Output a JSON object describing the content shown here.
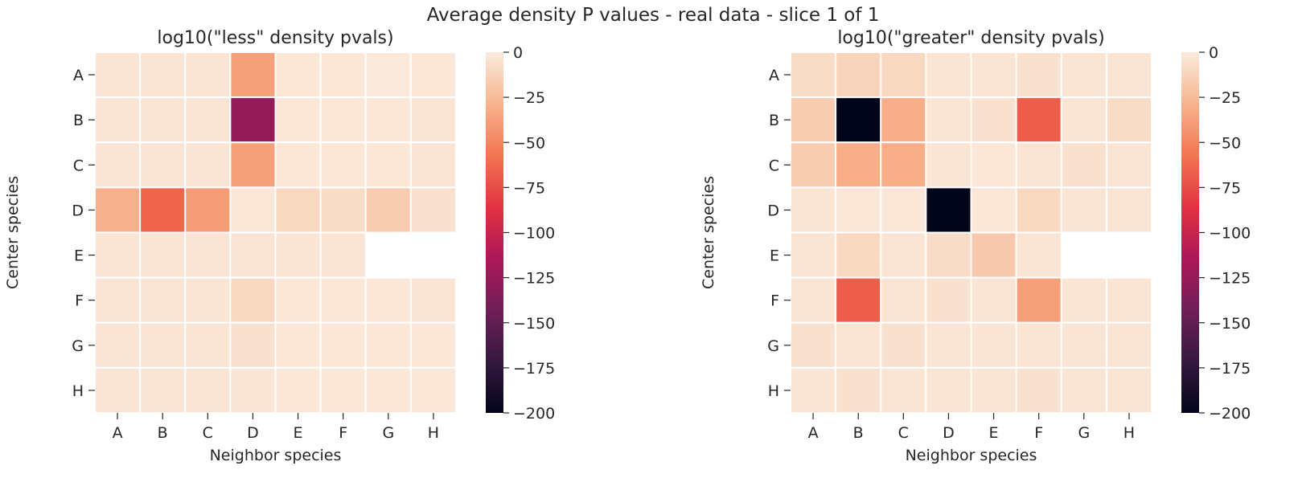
{
  "suptitle": "Average density P values - real data - slice 1 of 1",
  "colors": {
    "scale": [
      "#03051a",
      "#35193e",
      "#701f57",
      "#ad1759",
      "#e13342",
      "#f37651",
      "#f6b48f",
      "#faebdd"
    ],
    "missing": "#ffffff",
    "grid": "#ffffff"
  },
  "chart_data": [
    {
      "type": "heatmap",
      "title": "log10(\"less\" density pvals)",
      "xlabel": "Neighbor species",
      "ylabel": "Center species",
      "x_categories": [
        "A",
        "B",
        "C",
        "D",
        "E",
        "F",
        "G",
        "H"
      ],
      "y_categories": [
        "A",
        "B",
        "C",
        "D",
        "E",
        "F",
        "G",
        "H"
      ],
      "values": [
        [
          -3,
          -3,
          -3,
          -38,
          -2,
          -2,
          -1,
          -2
        ],
        [
          -3,
          -3,
          -3,
          -126,
          -2,
          -2,
          -2,
          -3
        ],
        [
          -3,
          -3,
          -3,
          -38,
          -2,
          -2,
          -2,
          -3
        ],
        [
          -30,
          -64,
          -40,
          -2,
          -10,
          -8,
          -16,
          -5
        ],
        [
          -3,
          -3,
          -3,
          -3,
          -3,
          -3,
          null,
          null
        ],
        [
          -3,
          -3,
          -3,
          -10,
          -2,
          -2,
          -2,
          -3
        ],
        [
          -3,
          -3,
          -3,
          -5,
          -2,
          -2,
          -2,
          -2
        ],
        [
          -3,
          -3,
          -3,
          -3,
          -2,
          -2,
          -2,
          -2
        ]
      ],
      "colorbar": {
        "vmin": -200,
        "vmax": 0,
        "ticks": [
          0,
          -25,
          -50,
          -75,
          -100,
          -125,
          -150,
          -175,
          -200
        ]
      }
    },
    {
      "type": "heatmap",
      "title": "log10(\"greater\" density pvals)",
      "xlabel": "Neighbor species",
      "ylabel": "Center species",
      "x_categories": [
        "A",
        "B",
        "C",
        "D",
        "E",
        "F",
        "G",
        "H"
      ],
      "y_categories": [
        "A",
        "B",
        "C",
        "D",
        "E",
        "F",
        "G",
        "H"
      ],
      "values": [
        [
          -8,
          -12,
          -10,
          -3,
          -3,
          -5,
          -3,
          -3
        ],
        [
          -16,
          -200,
          -32,
          -3,
          -5,
          -68,
          -3,
          -8
        ],
        [
          -16,
          -32,
          -32,
          -3,
          -2,
          -3,
          -5,
          -3
        ],
        [
          -3,
          -2,
          -2,
          -200,
          -2,
          -10,
          -3,
          -3
        ],
        [
          -3,
          -10,
          -3,
          -8,
          -18,
          -3,
          null,
          null
        ],
        [
          -3,
          -68,
          -3,
          -5,
          -3,
          -38,
          -3,
          -3
        ],
        [
          -5,
          -3,
          -5,
          -3,
          -3,
          -3,
          -3,
          -3
        ],
        [
          -3,
          -5,
          -3,
          -3,
          -3,
          -5,
          -3,
          -3
        ]
      ],
      "colorbar": {
        "vmin": -200,
        "vmax": 0,
        "ticks": [
          0,
          -25,
          -50,
          -75,
          -100,
          -125,
          -150,
          -175,
          -200
        ]
      }
    }
  ]
}
